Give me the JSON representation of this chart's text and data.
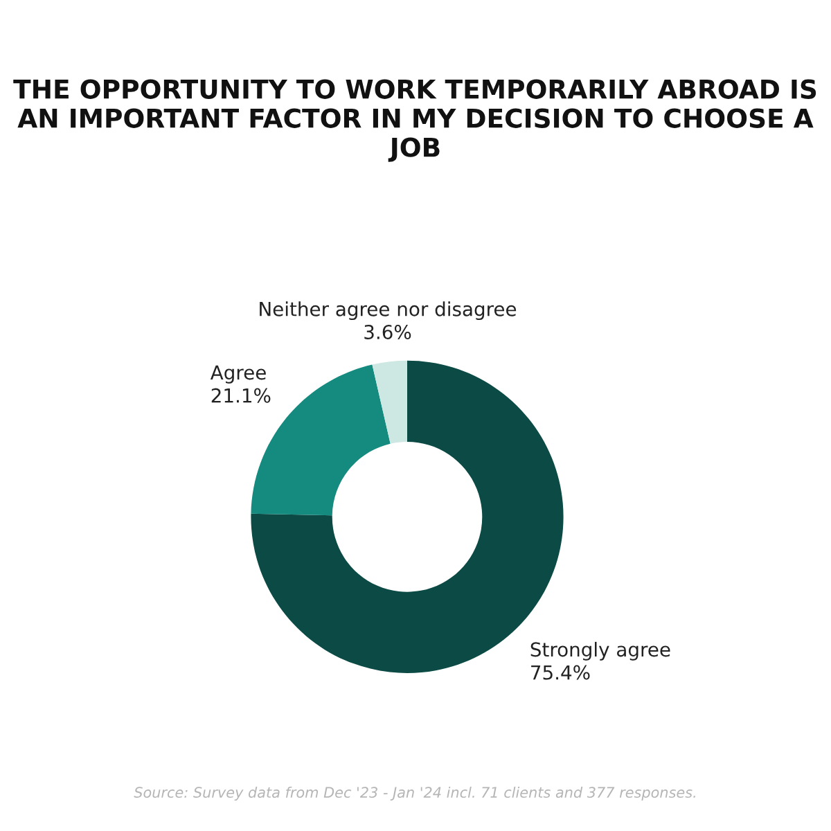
{
  "chart_data": {
    "type": "donut",
    "title": "THE OPPORTUNITY TO WORK TEMPORARILY ABROAD IS AN IMPORTANT FACTOR IN MY DECISION TO CHOOSE A JOB",
    "categories": [
      "Strongly agree",
      "Agree",
      "Neither agree nor disagree"
    ],
    "values": [
      75.4,
      21.1,
      3.6
    ],
    "value_labels": [
      "75.4%",
      "21.1%",
      "3.6%"
    ],
    "colors": [
      "#0b4a45",
      "#158a7f",
      "#cde7e2"
    ],
    "legend": false,
    "annotations": [
      "Source: Survey data from Dec '23 - Jan '24 incl. 71 clients and 377 responses."
    ]
  }
}
